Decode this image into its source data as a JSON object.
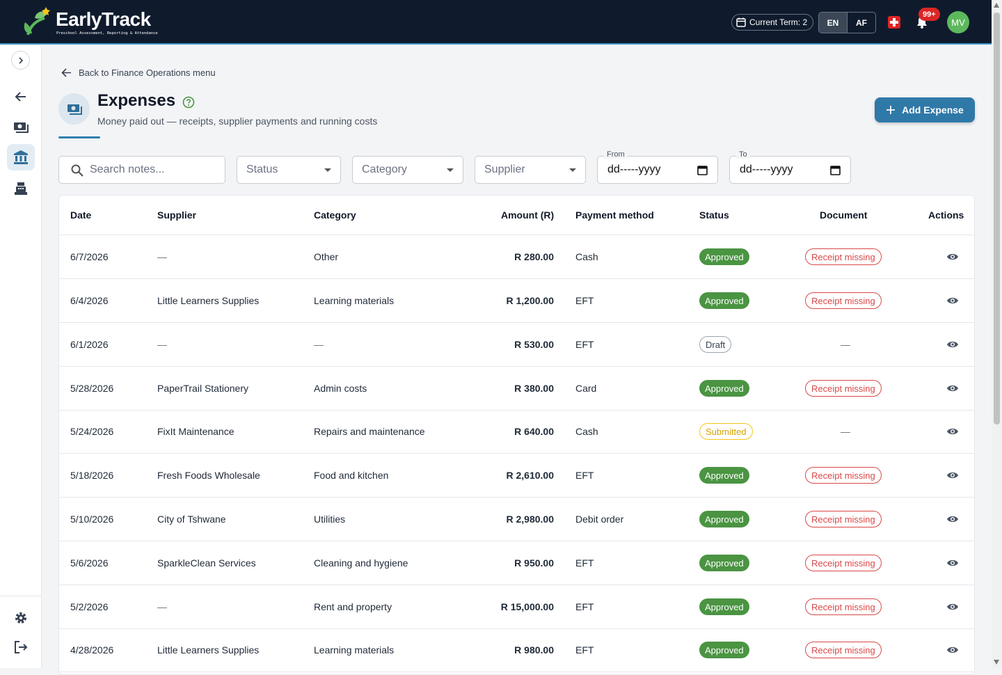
{
  "brand": {
    "name_part1": "Early",
    "name_part2": "Track",
    "tagline": "Preschool Assessment, Reporting & Attendance"
  },
  "header": {
    "term": "Current Term: 2",
    "lang_en": "EN",
    "lang_af": "AF",
    "notif_count": "99+",
    "avatar_initials": "MV"
  },
  "nav": {
    "back_link": "Back to Finance Operations menu"
  },
  "page": {
    "title": "Expenses",
    "subtitle": "Money paid out — receipts, supplier payments and running costs",
    "add_button": "Add Expense"
  },
  "filters": {
    "search_placeholder": "Search notes...",
    "status": "Status",
    "category": "Category",
    "supplier": "Supplier",
    "from_label": "From",
    "from_value": "dd-----yyyy",
    "to_label": "To",
    "to_value": "dd-----yyyy"
  },
  "table": {
    "headers": {
      "date": "Date",
      "supplier": "Supplier",
      "category": "Category",
      "amount": "Amount (R)",
      "method": "Payment method",
      "status": "Status",
      "document": "Document",
      "actions": "Actions"
    },
    "rows": [
      {
        "date": "6/7/2026",
        "supplier": "—",
        "category": "Other",
        "amount": "R 280.00",
        "method": "Cash",
        "status": "Approved",
        "document": "Receipt missing"
      },
      {
        "date": "6/4/2026",
        "supplier": "Little Learners Supplies",
        "category": "Learning materials",
        "amount": "R 1,200.00",
        "method": "EFT",
        "status": "Approved",
        "document": "Receipt missing"
      },
      {
        "date": "6/1/2026",
        "supplier": "—",
        "category": "—",
        "amount": "R 530.00",
        "method": "EFT",
        "status": "Draft",
        "document": "—"
      },
      {
        "date": "5/28/2026",
        "supplier": "PaperTrail Stationery",
        "category": "Admin costs",
        "amount": "R 380.00",
        "method": "Card",
        "status": "Approved",
        "document": "Receipt missing"
      },
      {
        "date": "5/24/2026",
        "supplier": "FixIt Maintenance",
        "category": "Repairs and maintenance",
        "amount": "R 640.00",
        "method": "Cash",
        "status": "Submitted",
        "document": "—"
      },
      {
        "date": "5/18/2026",
        "supplier": "Fresh Foods Wholesale",
        "category": "Food and kitchen",
        "amount": "R 2,610.00",
        "method": "EFT",
        "status": "Approved",
        "document": "Receipt missing"
      },
      {
        "date": "5/10/2026",
        "supplier": "City of Tshwane",
        "category": "Utilities",
        "amount": "R 2,980.00",
        "method": "Debit order",
        "status": "Approved",
        "document": "Receipt missing"
      },
      {
        "date": "5/6/2026",
        "supplier": "SparkleClean Services",
        "category": "Cleaning and hygiene",
        "amount": "R 950.00",
        "method": "EFT",
        "status": "Approved",
        "document": "Receipt missing"
      },
      {
        "date": "5/2/2026",
        "supplier": "—",
        "category": "Rent and property",
        "amount": "R 15,000.00",
        "method": "EFT",
        "status": "Approved",
        "document": "Receipt missing"
      },
      {
        "date": "4/28/2026",
        "supplier": "Little Learners Supplies",
        "category": "Learning materials",
        "amount": "R 980.00",
        "method": "EFT",
        "status": "Approved",
        "document": "Receipt missing"
      }
    ]
  },
  "colors": {
    "topbar": "#0f1b2d",
    "accent": "#2f79a8",
    "approved": "#4a9442",
    "missing": "#d94848",
    "submitted": "#f5c518"
  }
}
